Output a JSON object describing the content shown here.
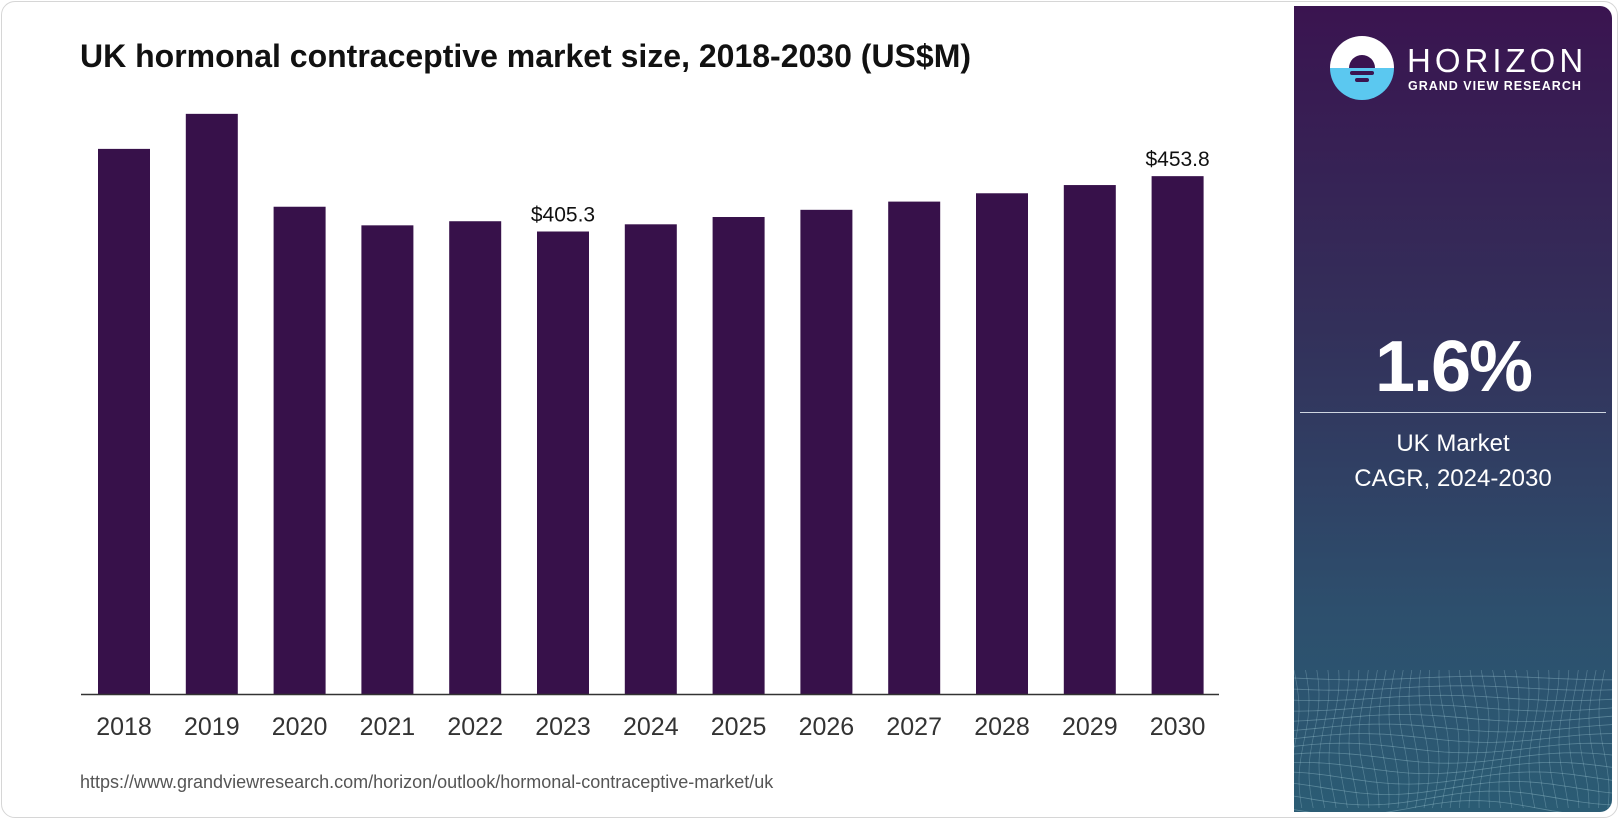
{
  "chart_data": {
    "type": "bar",
    "title": "UK hormonal contraceptive market size, 2018-2030 (US$M)",
    "categories": [
      "2018",
      "2019",
      "2020",
      "2021",
      "2022",
      "2023",
      "2024",
      "2025",
      "2026",
      "2027",
      "2028",
      "2029",
      "2030"
    ],
    "values": [
      477.7,
      508.4,
      427.0,
      410.7,
      414.3,
      405.3,
      411.6,
      418.0,
      424.3,
      431.5,
      438.8,
      446.0,
      453.8
    ],
    "data_labels": {
      "2023": "$405.3",
      "2030": "$453.8"
    },
    "xlabel": "",
    "ylabel": "",
    "ylim": [
      0,
      520
    ],
    "grid": false,
    "bar_color": "#37114a"
  },
  "source_url": "https://www.grandviewresearch.com/horizon/outlook/hormonal-contraceptive-market/uk",
  "panel": {
    "brand": "HORIZON",
    "brand_sub": "GRAND VIEW RESEARCH",
    "cagr_value": "1.6%",
    "cagr_label_1": "UK Market",
    "cagr_label_2": "CAGR, 2024-2030"
  }
}
